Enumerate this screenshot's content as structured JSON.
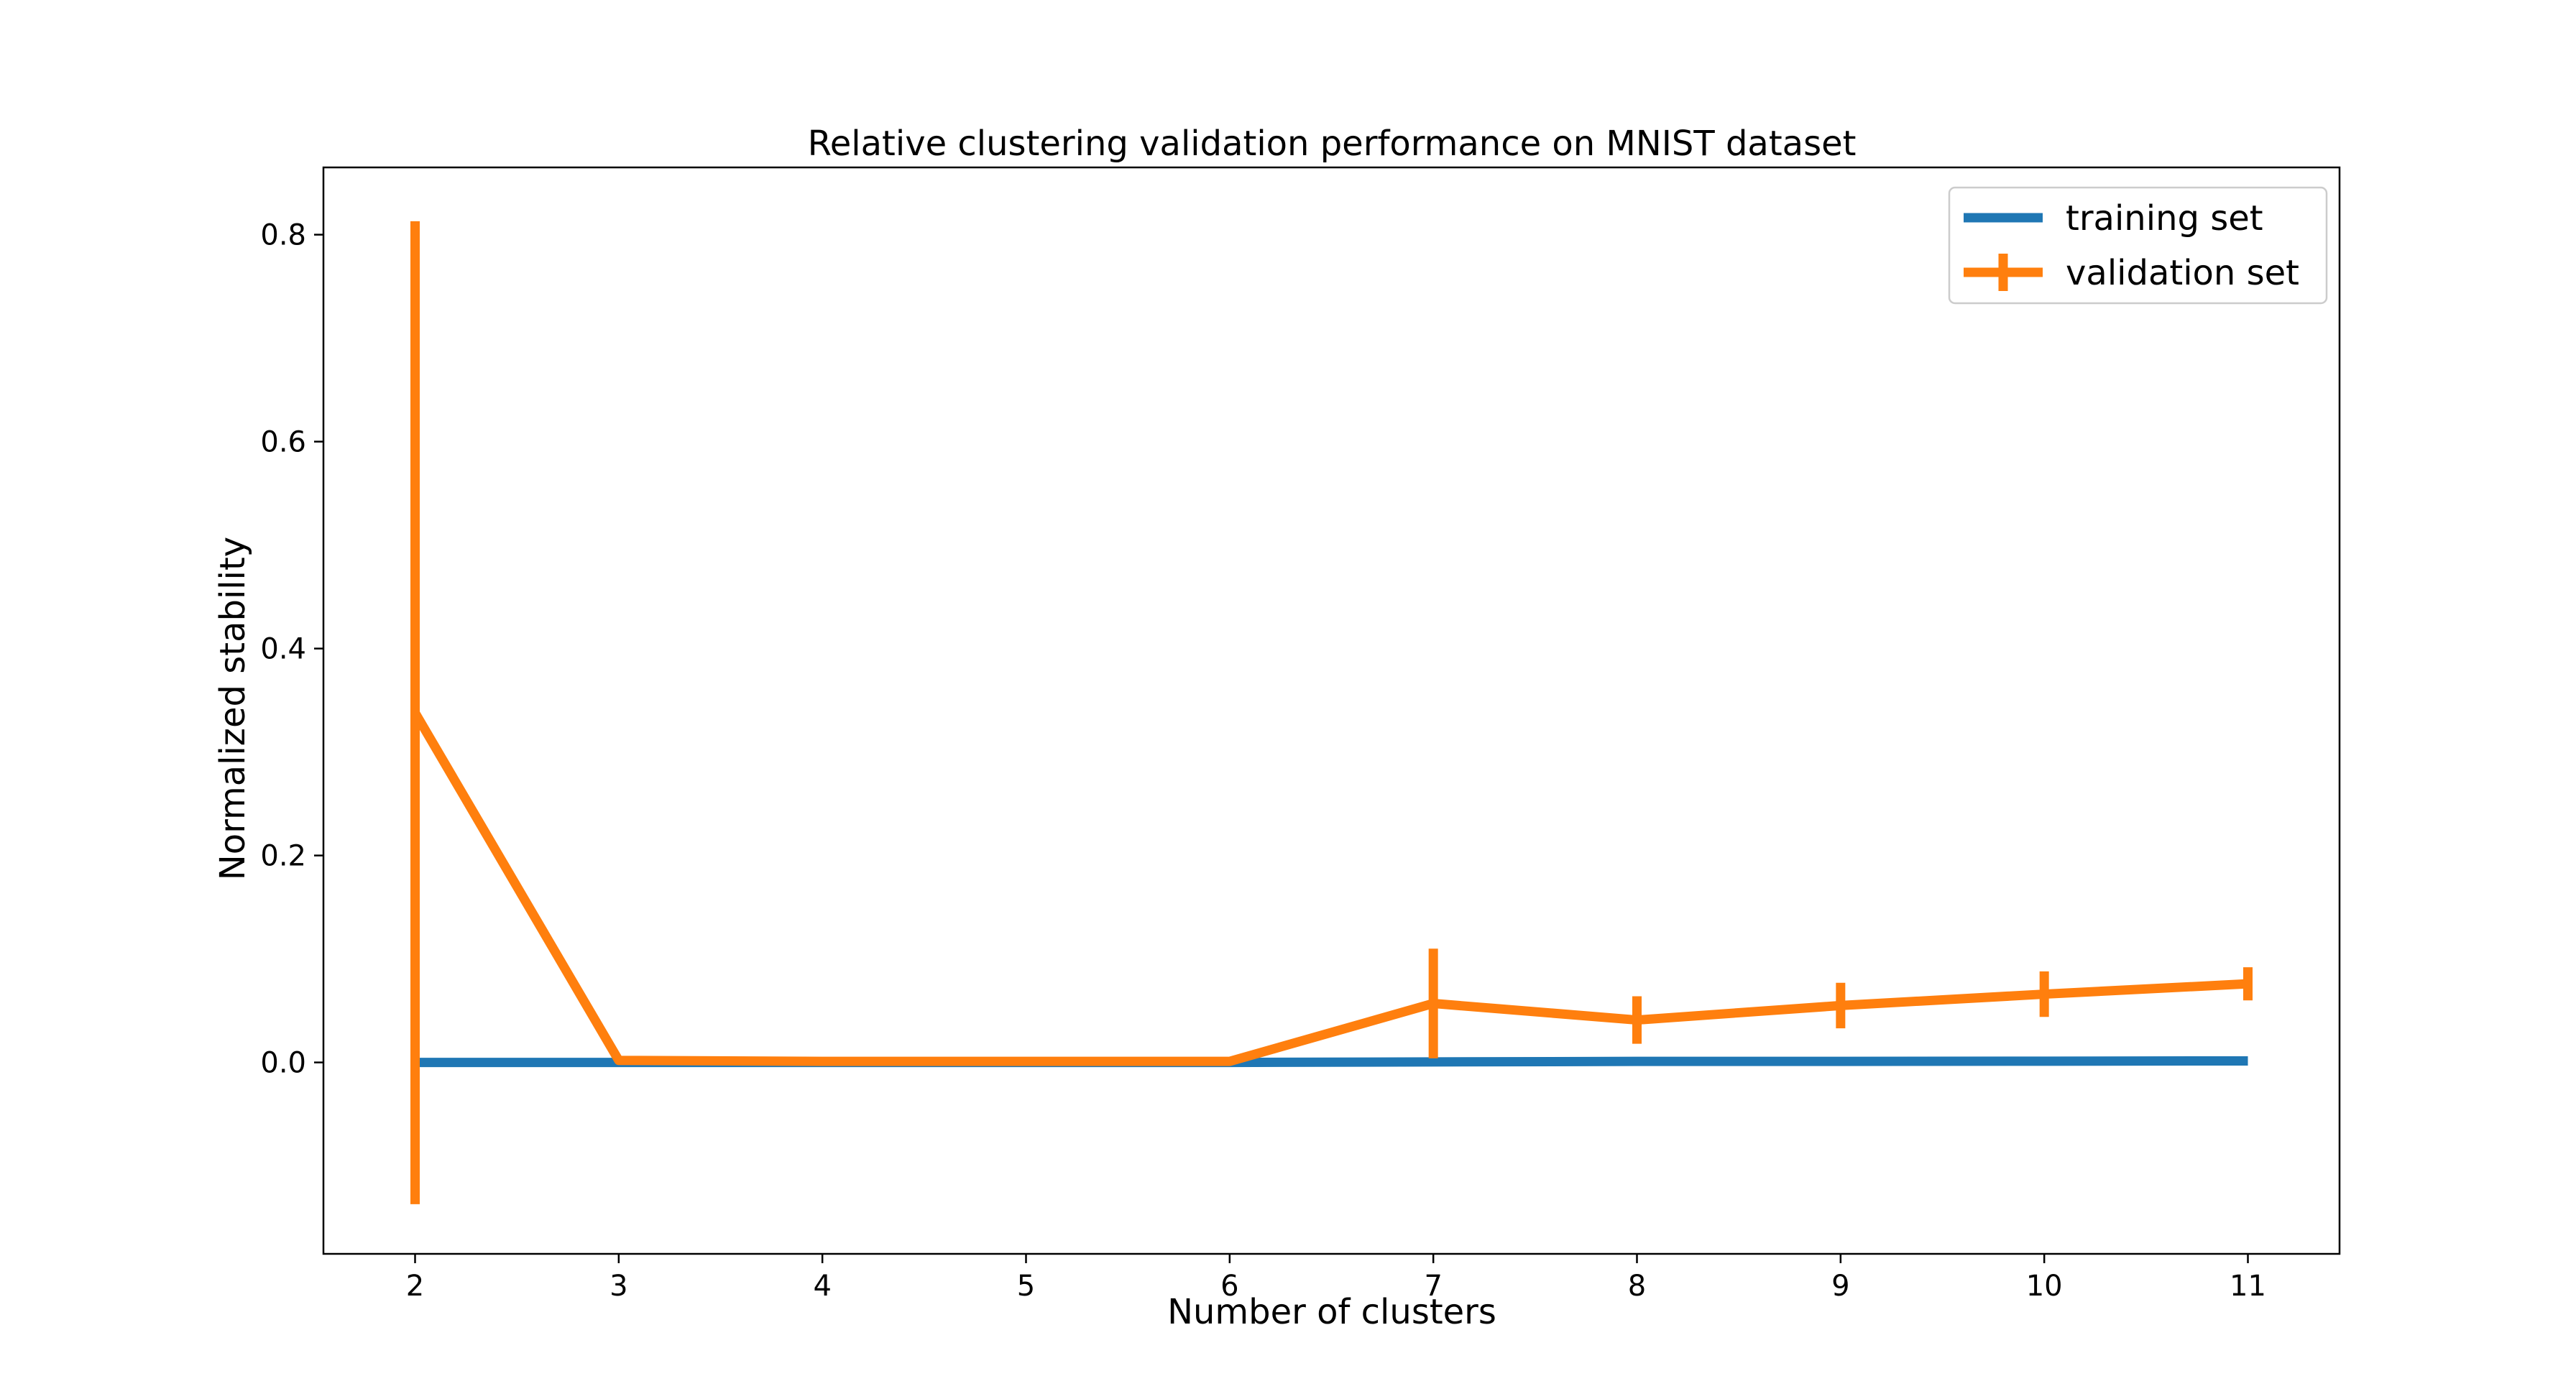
{
  "chart_data": {
    "type": "line",
    "title": "Relative clustering validation performance on MNIST dataset",
    "xlabel": "Number of clusters",
    "ylabel": "Normalized stability",
    "x": [
      2,
      3,
      4,
      5,
      6,
      7,
      8,
      9,
      10,
      11
    ],
    "xlim": [
      1.55,
      11.45
    ],
    "ylim": [
      -0.185,
      0.865
    ],
    "xticks": [
      2,
      3,
      4,
      5,
      6,
      7,
      8,
      9,
      10,
      11
    ],
    "yticks": [
      0.0,
      0.2,
      0.4,
      0.6,
      0.8
    ],
    "ytick_labels": [
      "0.0",
      "0.2",
      "0.4",
      "0.6",
      "0.8"
    ],
    "grid": false,
    "legend_position": "top-right",
    "series": [
      {
        "name": "training set",
        "color": "#1f77b4",
        "values": [
          0.0,
          0.0,
          0.0,
          0.0,
          0.0,
          0.0005,
          0.001,
          0.001,
          0.0012,
          0.0015
        ]
      },
      {
        "name": "validation set",
        "color": "#ff7f0e",
        "values": [
          0.338,
          0.002,
          0.001,
          0.001,
          0.001,
          0.057,
          0.041,
          0.055,
          0.066,
          0.076
        ],
        "error": [
          0.475,
          0.0,
          0.0,
          0.0,
          0.0,
          0.053,
          0.023,
          0.022,
          0.022,
          0.016
        ]
      }
    ]
  }
}
